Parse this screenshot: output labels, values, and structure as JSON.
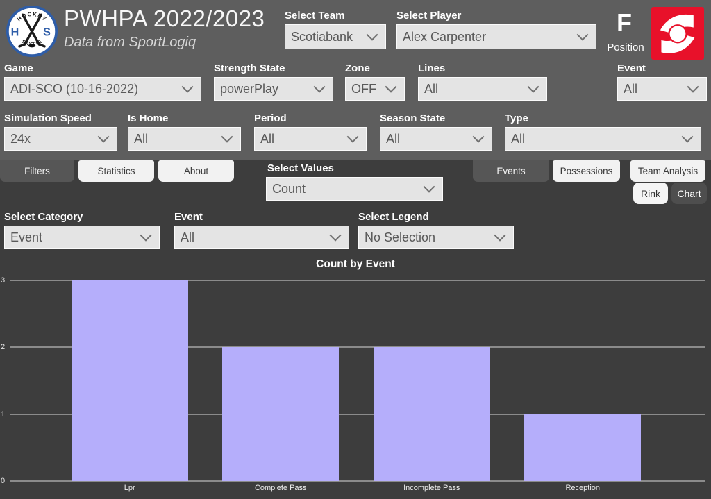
{
  "header": {
    "logo": {
      "arc_top": "HOCKEY",
      "arc_bottom": "SKYTTE",
      "left_letter": "H",
      "right_letter": "S"
    },
    "title": "PWHPA 2022/2023",
    "subtitle": "Data from SportLogiq",
    "select_team": {
      "label": "Select Team",
      "value": "Scotiabank"
    },
    "select_player": {
      "label": "Select Player",
      "value": "Alex Carpenter"
    },
    "position": {
      "value": "F",
      "label": "Position"
    }
  },
  "filters_row1": [
    {
      "label": "Game",
      "value": "ADI-SCO (10-16-2022)"
    },
    {
      "label": "Strength State",
      "value": "powerPlay"
    },
    {
      "label": "Zone",
      "value": "OFF"
    },
    {
      "label": "Lines",
      "value": "All"
    },
    {
      "label": "Event",
      "value": "All"
    }
  ],
  "filters_row2": [
    {
      "label": "Simulation Speed",
      "value": "24x"
    },
    {
      "label": "Is Home",
      "value": "All"
    },
    {
      "label": "Period",
      "value": "All"
    },
    {
      "label": "Season State",
      "value": "All"
    },
    {
      "label": "Type",
      "value": "All"
    }
  ],
  "left_tabs": [
    {
      "label": "Filters"
    },
    {
      "label": "Statistics"
    },
    {
      "label": "About"
    }
  ],
  "select_values": {
    "label": "Select Values",
    "value": "Count"
  },
  "right_tabs": [
    {
      "label": "Events"
    },
    {
      "label": "Possessions"
    },
    {
      "label": "Team Analysis"
    }
  ],
  "view_toggle": [
    {
      "label": "Rink"
    },
    {
      "label": "Chart"
    }
  ],
  "category_row": [
    {
      "label": "Select Category",
      "value": "Event"
    },
    {
      "label": "Event",
      "value": "All"
    },
    {
      "label": "Select Legend",
      "value": "No Selection"
    }
  ],
  "chart_data": {
    "type": "bar",
    "title": "Count by Event",
    "categories": [
      "Lpr",
      "Complete Pass",
      "Incomplete Pass",
      "Reception"
    ],
    "values": [
      3,
      2,
      2,
      1
    ],
    "xlabel": "",
    "ylabel": "",
    "ylim": [
      0,
      3
    ],
    "yticks": [
      0,
      1,
      2,
      3
    ],
    "grid": true,
    "legend_position": "none",
    "bar_color": "#b5aefb"
  },
  "colors": {
    "header_bg": "#5e5e5e",
    "body_bg": "#3d3d3d",
    "bar": "#b5aefb",
    "scotiabank_red": "#e8112a",
    "badge_blue": "#2e5da8"
  }
}
